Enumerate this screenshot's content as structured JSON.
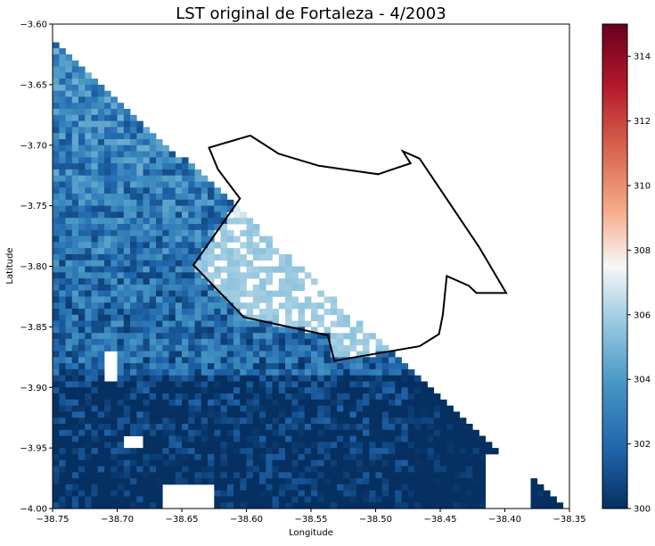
{
  "chart_data": {
    "type": "heatmap",
    "title": "LST original de Fortaleza - 4/2003",
    "xlabel": "Longitude",
    "ylabel": "Latitude",
    "xlim": [
      -38.75,
      -38.35
    ],
    "ylim": [
      -4.0,
      -3.6
    ],
    "xticks": [
      {
        "value": -38.75,
        "label": "−38.75"
      },
      {
        "value": -38.7,
        "label": "−38.70"
      },
      {
        "value": -38.65,
        "label": "−38.65"
      },
      {
        "value": -38.6,
        "label": "−38.60"
      },
      {
        "value": -38.55,
        "label": "−38.55"
      },
      {
        "value": -38.5,
        "label": "−38.50"
      },
      {
        "value": -38.45,
        "label": "−38.45"
      },
      {
        "value": -38.4,
        "label": "−38.40"
      },
      {
        "value": -38.35,
        "label": "−38.35"
      }
    ],
    "yticks": [
      {
        "value": -3.6,
        "label": "−3.60"
      },
      {
        "value": -3.65,
        "label": "−3.65"
      },
      {
        "value": -3.7,
        "label": "−3.70"
      },
      {
        "value": -3.75,
        "label": "−3.75"
      },
      {
        "value": -3.8,
        "label": "−3.80"
      },
      {
        "value": -3.85,
        "label": "−3.85"
      },
      {
        "value": -3.9,
        "label": "−3.90"
      },
      {
        "value": -3.95,
        "label": "−3.95"
      },
      {
        "value": -4.0,
        "label": "−4.00"
      }
    ],
    "colorbar": {
      "cmap": "RdBu_r",
      "vmin": 300,
      "vmax": 315,
      "ticks": [
        {
          "value": 300,
          "label": "300"
        },
        {
          "value": 302,
          "label": "302"
        },
        {
          "value": 304,
          "label": "304"
        },
        {
          "value": 306,
          "label": "306"
        },
        {
          "value": 308,
          "label": "308"
        },
        {
          "value": 310,
          "label": "310"
        },
        {
          "value": 312,
          "label": "312"
        },
        {
          "value": 314,
          "label": "314"
        }
      ]
    },
    "grid": false,
    "boundary": {
      "color": "#000000",
      "lon": [
        -38.597,
        -38.629,
        -38.622,
        -38.605,
        -38.641,
        -38.602,
        -38.537,
        -38.532,
        -38.466,
        -38.451,
        -38.448,
        -38.445,
        -38.428,
        -38.422,
        -38.399,
        -38.42,
        -38.466,
        -38.479,
        -38.473,
        -38.49,
        -38.498,
        -38.544,
        -38.575,
        -38.597
      ],
      "lat": [
        -3.692,
        -3.702,
        -3.72,
        -3.744,
        -3.799,
        -3.842,
        -3.857,
        -3.878,
        -3.866,
        -3.856,
        -3.84,
        -3.808,
        -3.816,
        -3.822,
        -3.822,
        -3.784,
        -3.711,
        -3.705,
        -3.715,
        -3.721,
        -3.724,
        -3.717,
        -3.707,
        -3.692
      ]
    }
  }
}
